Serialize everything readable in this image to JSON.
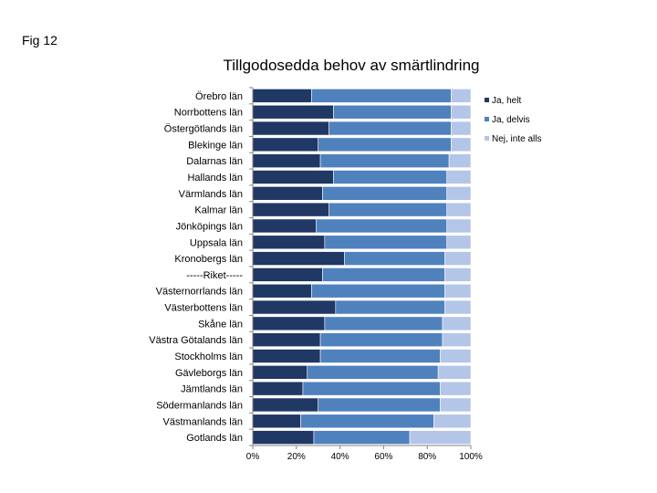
{
  "figure_label": "Fig 12",
  "chart_data": {
    "type": "bar",
    "orientation": "horizontal",
    "stacked": "percent",
    "title": "Tillgodosedda behov av smärtlindring",
    "xlabel": "",
    "ylabel": "",
    "xlim": [
      0,
      100
    ],
    "x_ticks": [
      "0%",
      "20%",
      "40%",
      "60%",
      "80%",
      "100%"
    ],
    "grid": false,
    "legend_position": "right",
    "categories": [
      "Örebro län",
      "Norrbottens län",
      "Östergötlands län",
      "Blekinge län",
      "Dalarnas län",
      "Hallands län",
      "Värmlands län",
      "Kalmar län",
      "Jönköpings län",
      "Uppsala län",
      "Kronobergs län",
      "-----Riket-----",
      "Västernorrlands län",
      "Västerbottens län",
      "Skåne län",
      "Västra Götalands län",
      "Stockholms län",
      "Gävleborgs län",
      "Jämtlands län",
      "Södermanlands län",
      "Västmanlands län",
      "Gotlands län"
    ],
    "series": [
      {
        "name": "Ja, helt",
        "color": "#1f3864",
        "values": [
          27,
          37,
          35,
          30,
          31,
          37,
          32,
          35,
          29,
          33,
          42,
          32,
          27,
          38,
          33,
          31,
          31,
          25,
          23,
          30,
          22,
          28
        ]
      },
      {
        "name": "Ja, delvis",
        "color": "#4f81bd",
        "values": [
          64,
          54,
          56,
          61,
          59,
          52,
          57,
          54,
          60,
          56,
          46,
          56,
          61,
          50,
          54,
          56,
          55,
          60,
          63,
          56,
          61,
          44
        ]
      },
      {
        "name": "Nej, inte alls",
        "color": "#b4c6e7",
        "values": [
          9,
          9,
          9,
          9,
          10,
          11,
          11,
          11,
          11,
          11,
          12,
          12,
          12,
          12,
          13,
          13,
          14,
          15,
          14,
          14,
          17,
          28
        ]
      }
    ]
  }
}
